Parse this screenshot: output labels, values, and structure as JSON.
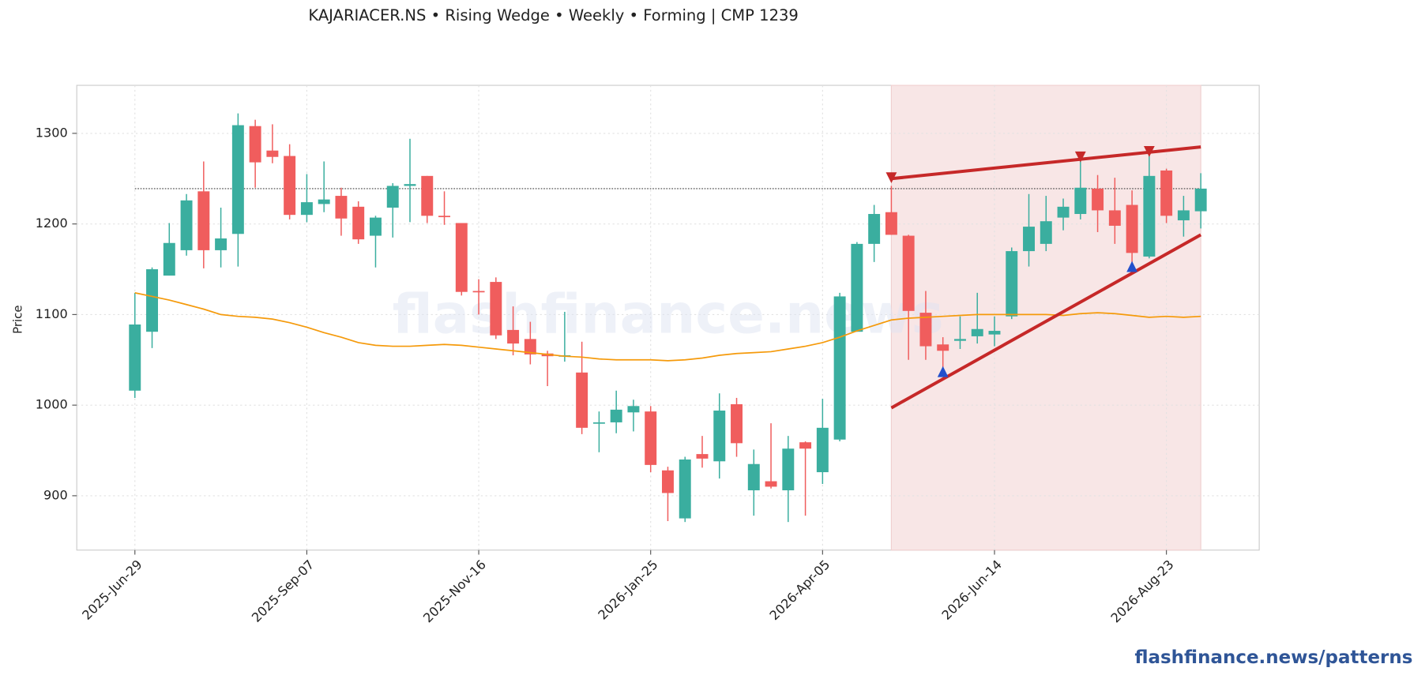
{
  "chart_data": {
    "type": "candlestick",
    "title": "KAJARIACER.NS  •  Rising Wedge  •  Weekly  •  Forming  |  CMP 1239",
    "ylabel": "Price",
    "watermark": "flashfinance.news",
    "footer": "flashfinance.news/patterns",
    "x": [
      "2025-Jun-29",
      "2025-Jul-06",
      "2025-Jul-13",
      "2025-Jul-20",
      "2025-Jul-27",
      "2025-Aug-03",
      "2025-Aug-10",
      "2025-Aug-17",
      "2025-Aug-24",
      "2025-Aug-31",
      "2025-Sep-07",
      "2025-Sep-14",
      "2025-Sep-21",
      "2025-Sep-28",
      "2025-Oct-05",
      "2025-Oct-12",
      "2025-Oct-19",
      "2025-Oct-26",
      "2025-Nov-02",
      "2025-Nov-09",
      "2025-Nov-16",
      "2025-Nov-23",
      "2025-Nov-30",
      "2025-Dec-07",
      "2025-Dec-14",
      "2025-Dec-21",
      "2025-Dec-28",
      "2026-Jan-04",
      "2026-Jan-11",
      "2026-Jan-18",
      "2026-Jan-25",
      "2026-Feb-01",
      "2026-Feb-08",
      "2026-Feb-15",
      "2026-Feb-22",
      "2026-Mar-01",
      "2026-Mar-08",
      "2026-Mar-15",
      "2026-Mar-22",
      "2026-Mar-29",
      "2026-Apr-05",
      "2026-Apr-12",
      "2026-Apr-19",
      "2026-Apr-26",
      "2026-May-03",
      "2026-May-10",
      "2026-May-17",
      "2026-May-24",
      "2026-May-31",
      "2026-Jun-07",
      "2026-Jun-14",
      "2026-Jun-21",
      "2026-Jun-28",
      "2026-Jul-05",
      "2026-Jul-12",
      "2026-Jul-19",
      "2026-Jul-26",
      "2026-Aug-02",
      "2026-Aug-09",
      "2026-Aug-16",
      "2026-Aug-23",
      "2026-Aug-30",
      "2026-Sep-06"
    ],
    "open": [
      1016,
      1081,
      1143,
      1171,
      1236,
      1171,
      1189,
      1308,
      1281,
      1275,
      1210,
      1222,
      1231,
      1219,
      1187,
      1218,
      1242,
      1253,
      1209,
      1201,
      1126,
      1136,
      1083,
      1073,
      1057,
      1054,
      1036,
      980,
      981,
      992,
      993,
      928,
      875,
      946,
      938,
      1001,
      906,
      916,
      906,
      959,
      926,
      962,
      1081,
      1178,
      1213,
      1187,
      1102,
      1067,
      1071,
      1076,
      1078,
      1098,
      1170,
      1178,
      1207,
      1211,
      1239,
      1215,
      1221,
      1164,
      1259,
      1204,
      1214
    ],
    "high": [
      1124,
      1152,
      1201,
      1233,
      1269,
      1218,
      1322,
      1315,
      1310,
      1288,
      1255,
      1269,
      1240,
      1225,
      1209,
      1245,
      1294,
      1253,
      1236,
      1201,
      1139,
      1141,
      1109,
      1092,
      1060,
      1103,
      1070,
      993,
      1016,
      1006,
      999,
      932,
      943,
      966,
      1013,
      1008,
      951,
      980,
      966,
      960,
      1007,
      1124,
      1180,
      1221,
      1242,
      1188,
      1126,
      1075,
      1098,
      1124,
      1098,
      1174,
      1233,
      1231,
      1228,
      1271,
      1254,
      1251,
      1237,
      1281,
      1261,
      1231,
      1256
    ],
    "low": [
      1008,
      1063,
      1143,
      1165,
      1151,
      1152,
      1153,
      1240,
      1267,
      1205,
      1202,
      1213,
      1187,
      1178,
      1152,
      1185,
      1202,
      1201,
      1199,
      1121,
      1100,
      1073,
      1055,
      1045,
      1021,
      1048,
      968,
      948,
      969,
      971,
      926,
      872,
      871,
      931,
      919,
      943,
      878,
      908,
      871,
      878,
      913,
      960,
      1081,
      1158,
      1188,
      1050,
      1050,
      1040,
      1062,
      1068,
      1065,
      1095,
      1153,
      1170,
      1193,
      1205,
      1191,
      1178,
      1150,
      1162,
      1201,
      1186,
      1195
    ],
    "close": [
      1089,
      1150,
      1179,
      1226,
      1171,
      1184,
      1309,
      1268,
      1274,
      1210,
      1224,
      1227,
      1206,
      1183,
      1207,
      1242,
      1244,
      1209,
      1208,
      1125,
      1125,
      1077,
      1068,
      1056,
      1054,
      1055,
      975,
      981,
      995,
      999,
      934,
      903,
      940,
      941,
      994,
      958,
      935,
      910,
      952,
      952,
      975,
      1120,
      1178,
      1211,
      1188,
      1104,
      1065,
      1060,
      1073,
      1084,
      1082,
      1170,
      1197,
      1203,
      1219,
      1240,
      1215,
      1198,
      1168,
      1253,
      1209,
      1215,
      1239
    ],
    "ylim": [
      840,
      1353
    ],
    "yticks": [
      900,
      1000,
      1100,
      1200,
      1300
    ],
    "xticks": [
      "2025-Jun-29",
      "2025-Sep-07",
      "2025-Nov-16",
      "2026-Jan-25",
      "2026-Apr-05",
      "2026-Jun-14",
      "2026-Aug-23"
    ],
    "grid": true,
    "up_color": "#3aae9f",
    "down_color": "#f05d5d",
    "ma": {
      "color": "#f59a0b",
      "values": [
        1124,
        1120,
        1116,
        1111,
        1106,
        1100,
        1098,
        1097,
        1095,
        1091,
        1086,
        1080,
        1075,
        1069,
        1066,
        1065,
        1065,
        1066,
        1067,
        1066,
        1064,
        1062,
        1060,
        1058,
        1056,
        1054,
        1053,
        1051,
        1050,
        1050,
        1050,
        1049,
        1050,
        1052,
        1055,
        1057,
        1058,
        1059,
        1062,
        1065,
        1069,
        1075,
        1082,
        1088,
        1094,
        1096,
        1097,
        1098,
        1099,
        1100,
        1100,
        1100,
        1100,
        1100,
        1099,
        1101,
        1102,
        1101,
        1099,
        1097,
        1098,
        1097,
        1098
      ]
    },
    "cmp_line": {
      "value": 1239,
      "color": "#444444"
    },
    "pattern": {
      "start": "2026-May-03",
      "end": "2026-Sep-06",
      "color": "#f8e6e6"
    },
    "trendlines": [
      {
        "x": [
          "2026-May-03",
          "2026-Sep-06"
        ],
        "y": [
          1250,
          1285
        ],
        "color": "#c62828"
      },
      {
        "x": [
          "2026-May-03",
          "2026-Sep-06"
        ],
        "y": [
          997,
          1188
        ],
        "color": "#c62828"
      }
    ],
    "markers": [
      {
        "x": "2026-May-03",
        "y": 1251,
        "dir": "down",
        "color": "#c62828"
      },
      {
        "x": "2026-Jul-19",
        "y": 1274,
        "dir": "down",
        "color": "#c62828"
      },
      {
        "x": "2026-Aug-16",
        "y": 1280,
        "dir": "down",
        "color": "#c62828"
      },
      {
        "x": "2026-May-24",
        "y": 1037,
        "dir": "up",
        "color": "#2250cc"
      },
      {
        "x": "2026-Aug-09",
        "y": 1153,
        "dir": "up",
        "color": "#2250cc"
      }
    ]
  }
}
